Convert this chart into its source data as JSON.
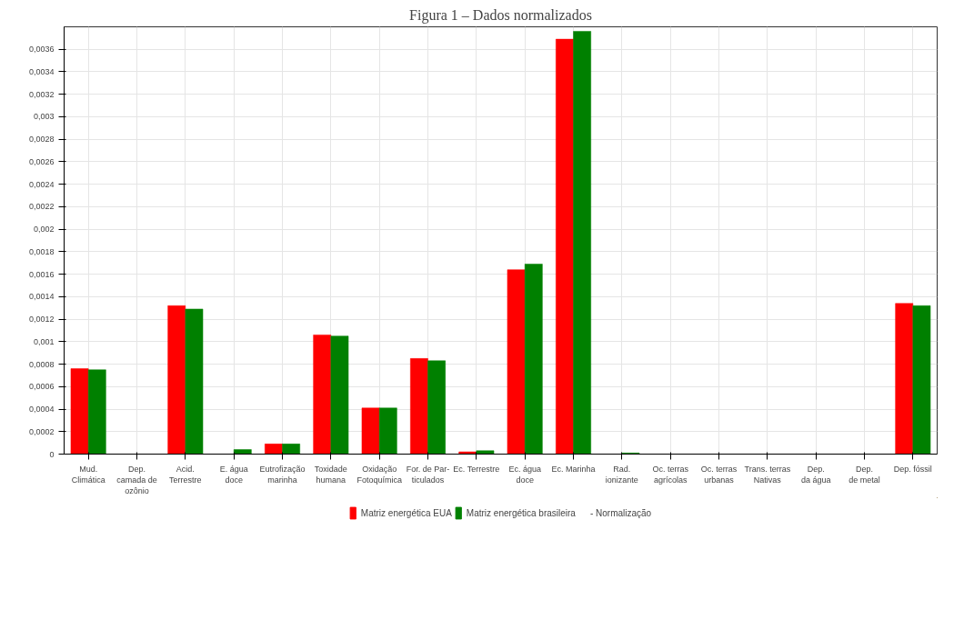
{
  "chart_data": {
    "type": "bar",
    "title": "Figura 1 – Dados normalizados",
    "categories": [
      "Mud.\nClimática",
      "Dep.\ncamada de\nozônio",
      "Acid.\nTerrestre",
      "E. água\ndoce",
      "Eutrofização\nmarinha",
      "Toxidade\nhumana",
      "Oxidação\nFotoquímica",
      "For. de Par-\nticulados",
      "Ec. Terrestre",
      "Ec. água\ndoce",
      "Ec. Marinha",
      "Rad.\nionizante",
      "Oc. terras\nagrícolas",
      "Oc. terras\nurbanas",
      "Trans. terras\nNativas",
      "Dep.\nda água",
      "Dep.\nde metal",
      "Dep. fóssil"
    ],
    "series": [
      {
        "name": "Matriz energética EUA",
        "color": "#ff0000",
        "values": [
          0.00076,
          0,
          0.00132,
          0,
          9e-05,
          0.00106,
          0.00041,
          0.00085,
          2e-05,
          0.00164,
          0.00369,
          0,
          0,
          0,
          0,
          0,
          0,
          0.00134
        ]
      },
      {
        "name": "Matriz energética brasileira",
        "color": "#008000",
        "values": [
          0.00075,
          0,
          0.00129,
          4e-05,
          9e-05,
          0.00105,
          0.00041,
          0.00083,
          3e-05,
          0.00169,
          0.00376,
          1e-05,
          0,
          0,
          0,
          0,
          0,
          0.00132
        ]
      }
    ],
    "annotations": [
      "- Normalização"
    ],
    "ylim": [
      0,
      0.0038
    ],
    "yticks": [
      0,
      {
        "value": 0.0002,
        "label": "0,0002"
      },
      {
        "value": 0.0004,
        "label": "0,0004"
      },
      {
        "value": 0.0006,
        "label": "0,0006"
      },
      {
        "value": 0.0008,
        "label": "0,0008"
      },
      {
        "value": 0.001,
        "label": "0,001"
      },
      {
        "value": 0.0012,
        "label": "0,0012"
      },
      {
        "value": 0.0014,
        "label": "0,0014"
      },
      {
        "value": 0.0016,
        "label": "0,0016"
      },
      {
        "value": 0.0018,
        "label": "0,0018"
      },
      {
        "value": 0.002,
        "label": "0,002"
      },
      {
        "value": 0.0022,
        "label": "0,0022"
      },
      {
        "value": 0.0024,
        "label": "0,0024"
      },
      {
        "value": 0.0026,
        "label": "0,0026"
      },
      {
        "value": 0.0028,
        "label": "0,0028"
      },
      {
        "value": 0.003,
        "label": "0,003"
      },
      {
        "value": 0.0032,
        "label": "0,0032"
      },
      {
        "value": 0.0034,
        "label": "0,0034"
      },
      {
        "value": 0.0036,
        "label": "0,0036"
      }
    ],
    "grid": true,
    "legend": "bottom"
  }
}
